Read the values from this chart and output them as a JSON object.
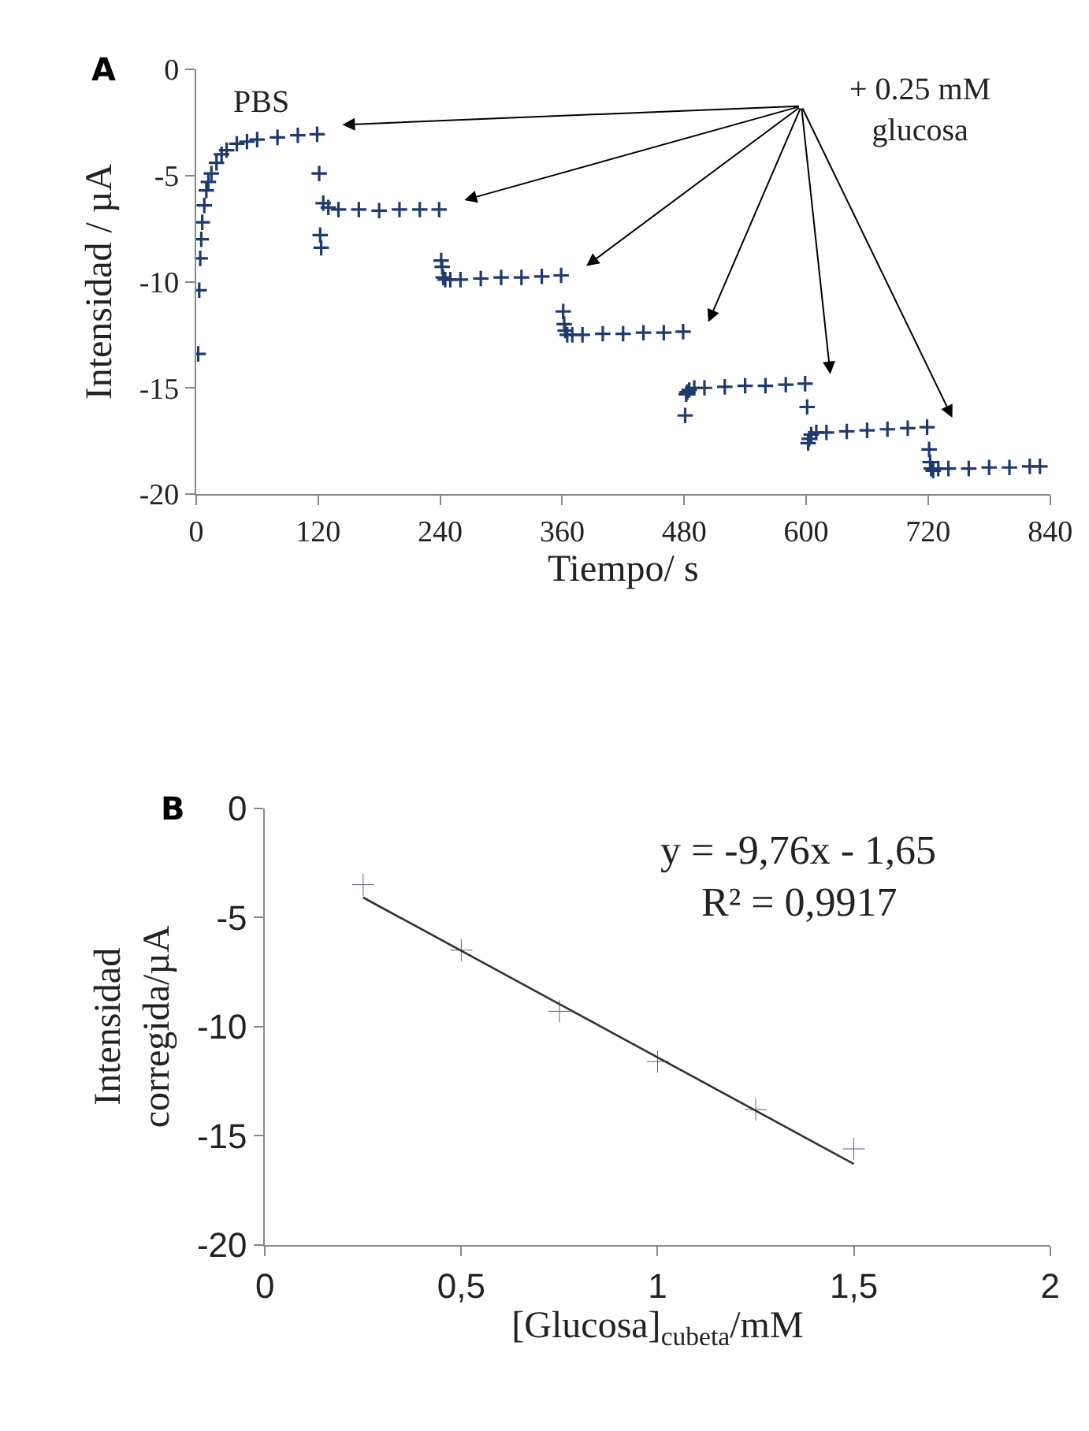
{
  "chart_data": [
    {
      "type": "scatter",
      "xlabel": "Tiempo/ s",
      "ylabel": "Intensidad / µA",
      "xlim": [
        0,
        840
      ],
      "xticks": [
        0,
        120,
        240,
        360,
        480,
        600,
        720,
        840
      ],
      "ylim": [
        -20,
        0
      ],
      "yticks": [
        -20,
        -15,
        -10,
        -5,
        0
      ],
      "marker": "cross",
      "annotations": [
        "A",
        "PBS",
        "+ 0.25 mM\nglucosa"
      ],
      "series": [
        {
          "color": "#1f3a6e",
          "x": [
            2,
            3,
            4,
            5,
            6,
            8,
            10,
            12,
            15,
            20,
            25,
            30,
            40,
            50,
            60,
            80,
            100,
            119,
            121,
            122,
            123,
            125,
            130,
            140,
            160,
            180,
            200,
            220,
            239,
            241,
            242,
            243,
            245,
            250,
            260,
            280,
            300,
            320,
            340,
            359,
            361,
            362,
            363,
            365,
            370,
            380,
            400,
            420,
            440,
            460,
            479,
            481,
            482,
            483,
            485,
            490,
            500,
            520,
            540,
            560,
            580,
            599,
            601,
            602,
            603,
            605,
            610,
            620,
            640,
            660,
            680,
            700,
            719,
            721,
            722,
            723,
            725,
            730,
            740,
            760,
            780,
            800,
            820,
            830
          ],
          "values": [
            -13.4,
            -10.4,
            -8.9,
            -8.0,
            -7.2,
            -6.4,
            -5.7,
            -5.3,
            -4.9,
            -4.4,
            -4.0,
            -3.8,
            -3.5,
            -3.4,
            -3.3,
            -3.2,
            -3.1,
            -3.05,
            -4.9,
            -7.8,
            -8.4,
            -6.3,
            -6.5,
            -6.6,
            -6.6,
            -6.65,
            -6.6,
            -6.6,
            -6.6,
            -9.0,
            -9.3,
            -9.8,
            -9.9,
            -9.9,
            -9.9,
            -9.85,
            -9.8,
            -9.8,
            -9.75,
            -9.7,
            -11.4,
            -12.0,
            -12.3,
            -12.5,
            -12.5,
            -12.5,
            -12.45,
            -12.45,
            -12.4,
            -12.4,
            -12.35,
            -16.3,
            -15.3,
            -15.2,
            -15.1,
            -15.0,
            -15.0,
            -14.95,
            -14.9,
            -14.9,
            -14.85,
            -14.8,
            -15.9,
            -17.6,
            -17.4,
            -17.2,
            -17.1,
            -17.1,
            -17.05,
            -17.0,
            -16.95,
            -16.9,
            -16.85,
            -17.9,
            -18.5,
            -18.8,
            -18.9,
            -18.8,
            -18.8,
            -18.8,
            -18.75,
            -18.75,
            -18.7,
            -18.7
          ]
        }
      ]
    },
    {
      "type": "scatter",
      "xlabel": "[Glucosa]$_{cubeta}$/mM",
      "ylabel": "Intensidad\ncorregida/µA",
      "xlim": [
        0,
        2
      ],
      "xticks": [
        0,
        {
          "value": 0.5,
          "label": "0,5"
        },
        1,
        {
          "value": 1.5,
          "label": "1,5"
        },
        2
      ],
      "ylim": [
        -20,
        0
      ],
      "yticks": [
        -20,
        -15,
        -10,
        -5,
        0
      ],
      "marker": "cross",
      "annotations": [
        "B",
        "y = -9,76x - 1,65",
        "R² = 0,9917"
      ],
      "series": [
        {
          "color": "#5a6482",
          "x": [
            0.25,
            0.5,
            0.75,
            1.0,
            1.25,
            1.5
          ],
          "values": [
            -3.5,
            -6.5,
            -9.3,
            -11.6,
            -13.8,
            -15.6
          ]
        },
        {
          "type": "line",
          "marker": "none",
          "color": "#333333",
          "x": [
            0.25,
            1.5
          ],
          "values": [
            -4.09,
            -16.29
          ]
        }
      ]
    }
  ]
}
